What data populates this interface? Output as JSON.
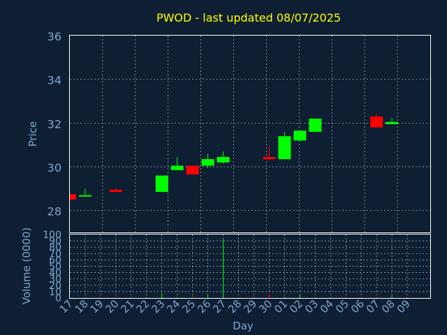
{
  "chart_data": [
    {
      "type": "candlestick",
      "title": "PWOD - last updated 08/07/2025",
      "ylabel": "Price",
      "ylim": [
        27,
        36
      ],
      "yticks": [
        28,
        30,
        32,
        34,
        36
      ],
      "grid": true,
      "colors": {
        "up": "#00ff00",
        "down": "#ff0000",
        "title": "#ffff00",
        "axis": "#7fa7cf",
        "background": "#0f1f33",
        "frame": "#ffffff"
      },
      "x_range": [
        0,
        22
      ],
      "candles": [
        {
          "day": 0,
          "open": 28.75,
          "high": 28.75,
          "low": 28.45,
          "close": 28.5
        },
        {
          "day": 1,
          "open": 28.65,
          "high": 29.0,
          "low": 28.65,
          "close": 28.7
        },
        {
          "day": 3,
          "open": 28.95,
          "high": 29.05,
          "low": 28.85,
          "close": 28.85
        },
        {
          "day": 6,
          "open": 28.85,
          "high": 29.6,
          "low": 28.85,
          "close": 29.6
        },
        {
          "day": 7,
          "open": 29.85,
          "high": 30.45,
          "low": 29.85,
          "close": 30.05
        },
        {
          "day": 8,
          "open": 30.05,
          "high": 30.05,
          "low": 29.65,
          "close": 29.65
        },
        {
          "day": 9,
          "open": 30.05,
          "high": 30.6,
          "low": 29.95,
          "close": 30.35
        },
        {
          "day": 10,
          "open": 30.2,
          "high": 30.7,
          "low": 30.15,
          "close": 30.45
        },
        {
          "day": 13,
          "open": 30.45,
          "high": 30.95,
          "low": 30.3,
          "close": 30.35
        },
        {
          "day": 14,
          "open": 30.35,
          "high": 31.6,
          "low": 30.35,
          "close": 31.4
        },
        {
          "day": 15,
          "open": 31.2,
          "high": 31.65,
          "low": 31.2,
          "close": 31.65
        },
        {
          "day": 16,
          "open": 31.6,
          "high": 32.2,
          "low": 31.6,
          "close": 32.2
        },
        {
          "day": 20,
          "open": 32.3,
          "high": 32.45,
          "low": 31.8,
          "close": 31.8
        },
        {
          "day": 21,
          "open": 31.95,
          "high": 32.25,
          "low": 31.95,
          "close": 32.05
        }
      ]
    },
    {
      "type": "bar",
      "ylabel": "Volume (0000)",
      "xlabel": "Day",
      "ylim": [
        0,
        100
      ],
      "yticks": [
        0,
        10,
        20,
        30,
        40,
        50,
        60,
        70,
        80,
        90,
        100
      ],
      "grid": true,
      "categories": [
        "17",
        "18",
        "19",
        "20",
        "21",
        "22",
        "23",
        "24",
        "25",
        "26",
        "27",
        "28",
        "29",
        "30",
        "01",
        "02",
        "03",
        "04",
        "05",
        "06",
        "07",
        "08",
        "09"
      ],
      "volumes": [
        {
          "day": 0,
          "value": 0.5,
          "dir": "down"
        },
        {
          "day": 1,
          "value": 0.5,
          "dir": "up"
        },
        {
          "day": 3,
          "value": 1.5,
          "dir": "down"
        },
        {
          "day": 6,
          "value": 8,
          "dir": "up"
        },
        {
          "day": 7,
          "value": 1,
          "dir": "up"
        },
        {
          "day": 8,
          "value": 3,
          "dir": "down"
        },
        {
          "day": 9,
          "value": 5,
          "dir": "up"
        },
        {
          "day": 10,
          "value": 92,
          "dir": "up"
        },
        {
          "day": 13,
          "value": 7,
          "dir": "down"
        },
        {
          "day": 14,
          "value": 2,
          "dir": "up"
        },
        {
          "day": 15,
          "value": 5,
          "dir": "up"
        },
        {
          "day": 16,
          "value": 1,
          "dir": "up"
        },
        {
          "day": 20,
          "value": 0.5,
          "dir": "down"
        },
        {
          "day": 21,
          "value": 4,
          "dir": "up"
        }
      ]
    }
  ]
}
